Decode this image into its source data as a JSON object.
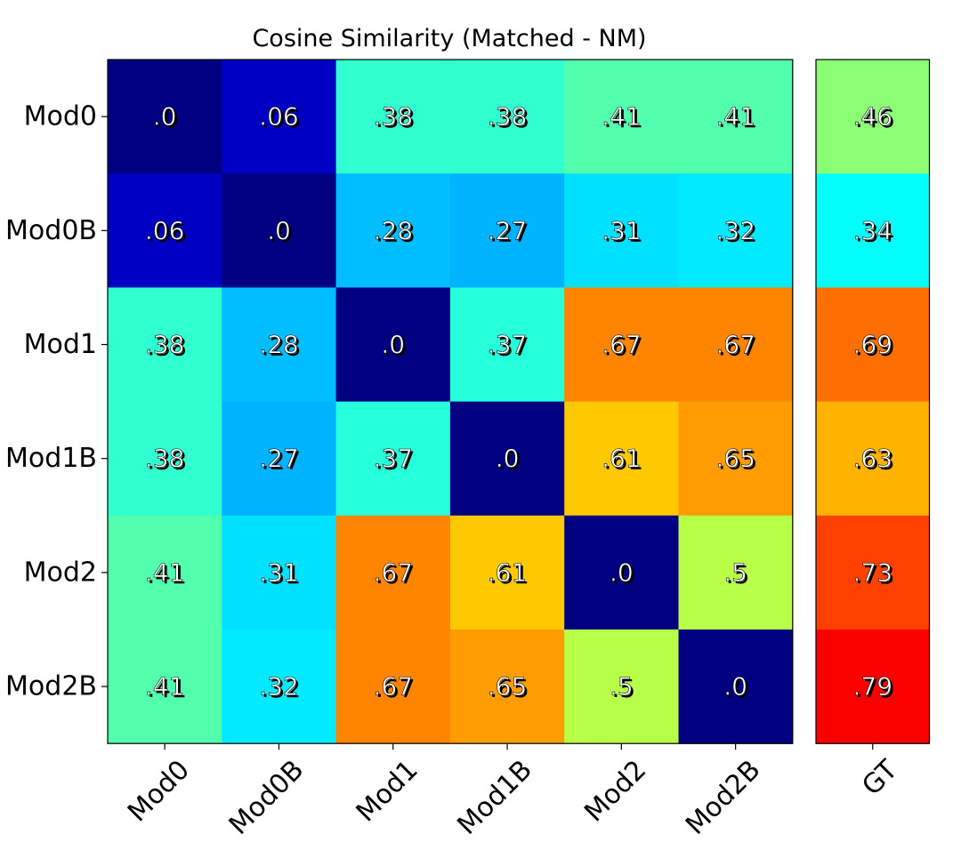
{
  "chart_data": {
    "type": "heatmap",
    "title": "Cosine Similarity (Matched - NM)",
    "colormap": "jet",
    "value_range": [
      0,
      0.9
    ],
    "rows": [
      "Mod0",
      "Mod0B",
      "Mod1",
      "Mod1B",
      "Mod2",
      "Mod2B"
    ],
    "columns": [
      "Mod0",
      "Mod0B",
      "Mod1",
      "Mod1B",
      "Mod2",
      "Mod2B"
    ],
    "values": [
      [
        0.0,
        0.06,
        0.38,
        0.38,
        0.41,
        0.41
      ],
      [
        0.06,
        0.0,
        0.28,
        0.27,
        0.31,
        0.32
      ],
      [
        0.38,
        0.28,
        0.0,
        0.37,
        0.67,
        0.67
      ],
      [
        0.38,
        0.27,
        0.37,
        0.0,
        0.61,
        0.65
      ],
      [
        0.41,
        0.31,
        0.67,
        0.61,
        0.0,
        0.5
      ],
      [
        0.41,
        0.32,
        0.67,
        0.65,
        0.5,
        0.0
      ]
    ],
    "labels": [
      [
        ".0",
        ".06",
        ".38",
        ".38",
        ".41",
        ".41"
      ],
      [
        ".06",
        ".0",
        ".28",
        ".27",
        ".31",
        ".32"
      ],
      [
        ".38",
        ".28",
        ".0",
        ".37",
        ".67",
        ".67"
      ],
      [
        ".38",
        ".27",
        ".37",
        ".0",
        ".61",
        ".65"
      ],
      [
        ".41",
        ".31",
        ".67",
        ".61",
        ".0",
        ".5"
      ],
      [
        ".41",
        ".32",
        ".67",
        ".65",
        ".5",
        ".0"
      ]
    ],
    "side_panel": {
      "column": "GT",
      "values": [
        0.46,
        0.34,
        0.69,
        0.63,
        0.73,
        0.79
      ],
      "labels": [
        ".46",
        ".34",
        ".69",
        ".63",
        ".73",
        ".79"
      ]
    }
  }
}
